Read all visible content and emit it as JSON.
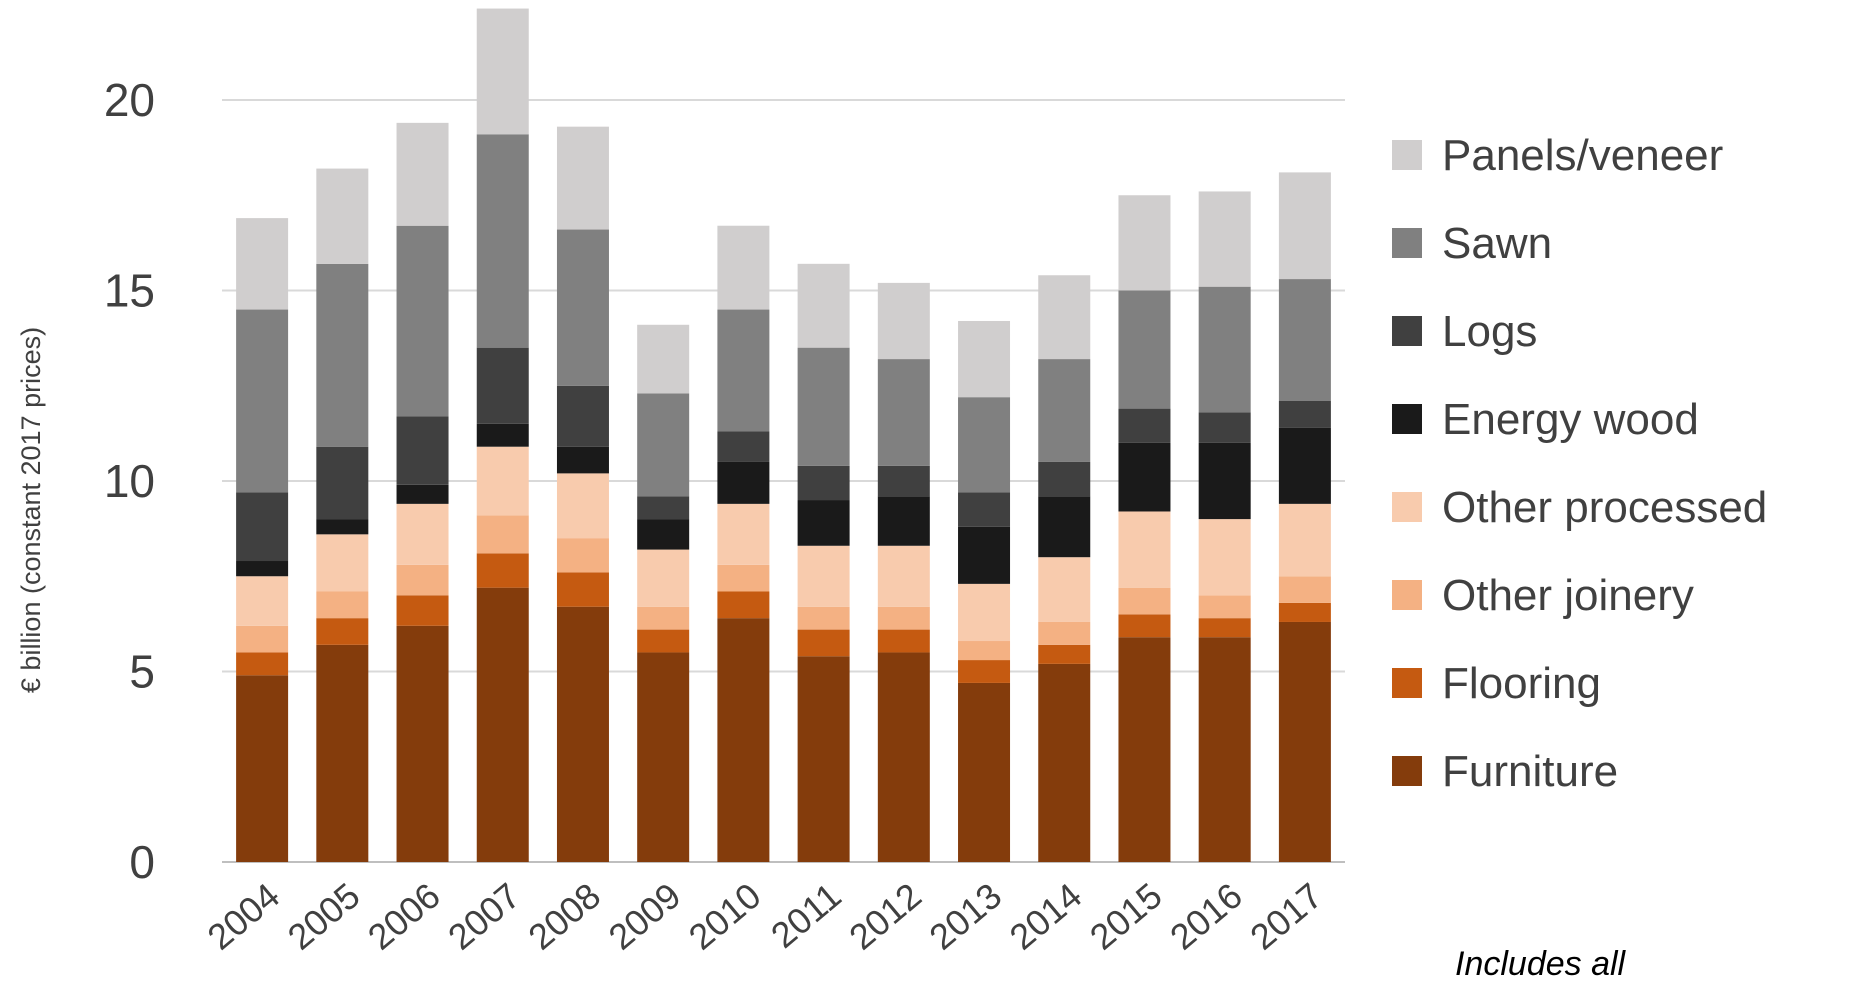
{
  "chart_data": {
    "type": "bar",
    "stacked": true,
    "categories": [
      "2004",
      "2005",
      "2006",
      "2007",
      "2008",
      "2009",
      "2010",
      "2011",
      "2012",
      "2013",
      "2014",
      "2015",
      "2016",
      "2017"
    ],
    "ylabel": "€ billion (constant 2017 prices)",
    "ylim": [
      0,
      22
    ],
    "yticks": [
      0,
      5,
      10,
      15,
      20
    ],
    "grid": true,
    "legend_position": "right",
    "series": [
      {
        "name": "Furniture",
        "color": "#843C0C",
        "values": [
          4.9,
          5.7,
          6.2,
          7.2,
          6.7,
          5.5,
          6.4,
          5.4,
          5.5,
          4.7,
          5.2,
          5.9,
          5.9,
          6.3
        ]
      },
      {
        "name": "Flooring",
        "color": "#C55A11",
        "values": [
          0.6,
          0.7,
          0.8,
          0.9,
          0.9,
          0.6,
          0.7,
          0.7,
          0.6,
          0.6,
          0.5,
          0.6,
          0.5,
          0.5
        ]
      },
      {
        "name": "Other joinery",
        "color": "#F4B183",
        "values": [
          0.7,
          0.7,
          0.8,
          1.0,
          0.9,
          0.6,
          0.7,
          0.6,
          0.6,
          0.5,
          0.6,
          0.7,
          0.6,
          0.7
        ]
      },
      {
        "name": "Other processed",
        "color": "#F8CBAD",
        "values": [
          1.3,
          1.5,
          1.6,
          1.8,
          1.7,
          1.5,
          1.6,
          1.6,
          1.6,
          1.5,
          1.7,
          2.0,
          2.0,
          1.9
        ]
      },
      {
        "name": "Energy wood",
        "color": "#1A1A1A",
        "values": [
          0.4,
          0.4,
          0.5,
          0.6,
          0.7,
          0.8,
          1.1,
          1.2,
          1.3,
          1.5,
          1.6,
          1.8,
          2.0,
          2.0
        ]
      },
      {
        "name": "Logs",
        "color": "#404040",
        "values": [
          1.8,
          1.9,
          1.8,
          2.0,
          1.6,
          0.6,
          0.8,
          0.9,
          0.8,
          0.9,
          0.9,
          0.9,
          0.8,
          0.7
        ]
      },
      {
        "name": "Sawn",
        "color": "#808080",
        "values": [
          4.8,
          4.8,
          5.0,
          5.6,
          4.1,
          2.7,
          3.2,
          3.1,
          2.8,
          2.5,
          2.7,
          3.1,
          3.3,
          3.2
        ]
      },
      {
        "name": "Panels/veneer",
        "color": "#D0CECE",
        "values": [
          2.4,
          2.5,
          2.7,
          3.3,
          2.7,
          1.8,
          2.2,
          2.2,
          2.0,
          2.0,
          2.2,
          2.5,
          2.5,
          2.8
        ]
      }
    ],
    "legend_order": [
      "Panels/veneer",
      "Sawn",
      "Logs",
      "Energy wood",
      "Other processed",
      "Other joinery",
      "Flooring",
      "Furniture"
    ],
    "annotation": "Includes all"
  }
}
